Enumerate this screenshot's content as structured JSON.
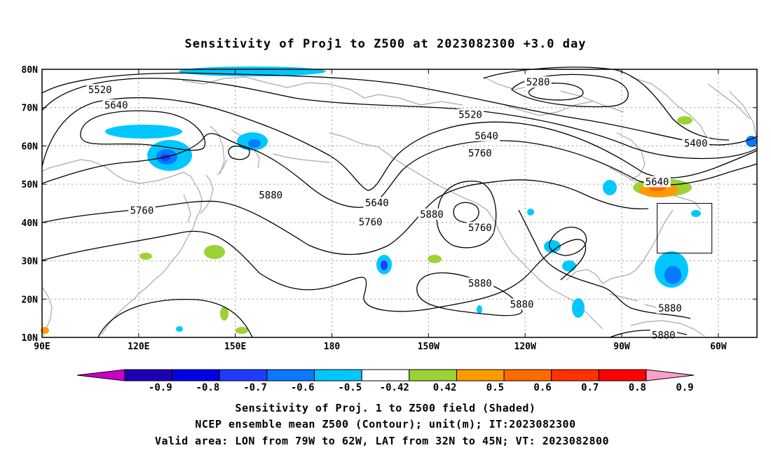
{
  "title": "Sensitivity of Proj1 to Z500 at 2023082300 +3.0 day",
  "map": {
    "lon_range": [
      90,
      312
    ],
    "lat_range": [
      10,
      80
    ],
    "lat_ticks": [
      {
        "lat": 80,
        "label": "80N"
      },
      {
        "lat": 70,
        "label": "70N"
      },
      {
        "lat": 60,
        "label": "60N"
      },
      {
        "lat": 50,
        "label": "50N"
      },
      {
        "lat": 40,
        "label": "40N"
      },
      {
        "lat": 30,
        "label": "30N"
      },
      {
        "lat": 20,
        "label": "20N"
      },
      {
        "lat": 10,
        "label": "10N"
      }
    ],
    "lon_ticks": [
      {
        "lon": 90,
        "label": "90E"
      },
      {
        "lon": 120,
        "label": "120E"
      },
      {
        "lon": 150,
        "label": "150E"
      },
      {
        "lon": 180,
        "label": "180"
      },
      {
        "lon": 210,
        "label": "150W"
      },
      {
        "lon": 240,
        "label": "120W"
      },
      {
        "lon": 270,
        "label": "90W"
      },
      {
        "lon": 300,
        "label": "60W"
      }
    ],
    "valid_area": {
      "lon": [
        281,
        298
      ],
      "lat": [
        32,
        45
      ]
    },
    "contour_labels": [
      {
        "text": "5280",
        "lon": 244,
        "lat": 76.5
      },
      {
        "text": "5520",
        "lon": 108,
        "lat": 74.5
      },
      {
        "text": "5640",
        "lon": 113,
        "lat": 70.5
      },
      {
        "text": "5520",
        "lon": 223,
        "lat": 68
      },
      {
        "text": "5640",
        "lon": 228,
        "lat": 62.5
      },
      {
        "text": "5760",
        "lon": 226,
        "lat": 58
      },
      {
        "text": "5400",
        "lon": 293,
        "lat": 60.5
      },
      {
        "text": "5640",
        "lon": 281,
        "lat": 50.5
      },
      {
        "text": "5640",
        "lon": 194,
        "lat": 45
      },
      {
        "text": "5760",
        "lon": 192,
        "lat": 40
      },
      {
        "text": "5880",
        "lon": 161,
        "lat": 47
      },
      {
        "text": "5760",
        "lon": 121,
        "lat": 43
      },
      {
        "text": "5880",
        "lon": 211,
        "lat": 42
      },
      {
        "text": "5760",
        "lon": 226,
        "lat": 38.5
      },
      {
        "text": "5880",
        "lon": 226,
        "lat": 24
      },
      {
        "text": "5880",
        "lon": 239,
        "lat": 18.5
      },
      {
        "text": "5880",
        "lon": 285,
        "lat": 17.5
      },
      {
        "text": "5880",
        "lon": 283,
        "lat": 10.5
      }
    ]
  },
  "colorbar": {
    "labels": [
      "-0.9",
      "-0.8",
      "-0.7",
      "-0.6",
      "-0.5",
      "-0.42",
      "0.42",
      "0.5",
      "0.6",
      "0.7",
      "0.8",
      "0.9"
    ],
    "colors": [
      "#c800c8",
      "#1e00b4",
      "#0000e6",
      "#1e3cff",
      "#0a78ff",
      "#00c8ff",
      "#ffffff",
      "#9cd234",
      "#ff9b00",
      "#ff6a00",
      "#ff3200",
      "#ff0000",
      "#ffa0c8"
    ]
  },
  "caption": {
    "line1": "Sensitivity of Proj. 1 to Z500 field (Shaded)",
    "line2": "NCEP ensemble mean Z500 (Contour); unit(m); IT:2023082300",
    "line3": "Valid area: LON from 79W to 62W, LAT from 32N to 45N; VT: 2023082800"
  }
}
